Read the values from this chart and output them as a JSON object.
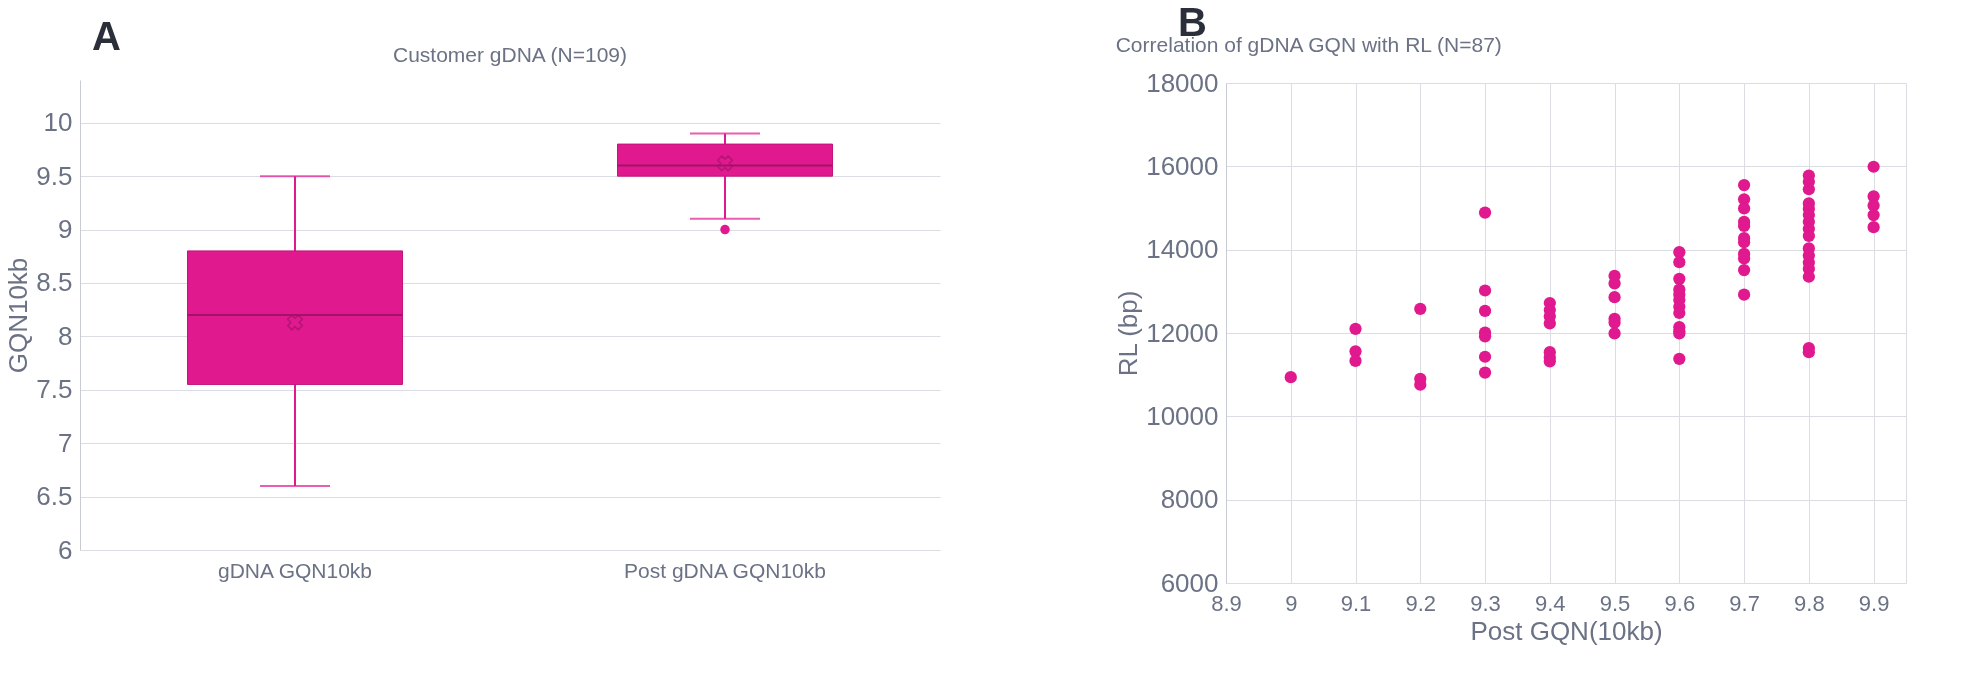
{
  "chart_data": [
    {
      "type": "box",
      "title": "Customer gDNA (N=109)",
      "ylabel": "GQN10kb",
      "annotations": [
        "A"
      ],
      "categories": [
        "gDNA GQN10kb",
        "Post gDNA GQN10kb"
      ],
      "boxes": [
        {
          "low": 6.6,
          "q1": 7.55,
          "median": 8.2,
          "q3": 8.8,
          "high": 9.5,
          "mean": 8.13
        },
        {
          "low": 9.1,
          "q1": 9.5,
          "median": 9.6,
          "q3": 9.8,
          "high": 9.9,
          "mean": 9.62,
          "outliers": [
            9.0
          ]
        }
      ],
      "color": "#e0198f",
      "ylim": [
        6,
        10.4
      ],
      "yticks": [
        6,
        6.5,
        7,
        7.5,
        8,
        8.5,
        9,
        9.5,
        10
      ],
      "grid": "y"
    },
    {
      "type": "scatter",
      "title": "Correlation of gDNA GQN with RL (N=87)",
      "xlabel": "Post GQN(10kb)",
      "ylabel": "RL (bp)",
      "annotations": [
        "B"
      ],
      "x": [
        9.0,
        9.1,
        9.1,
        9.1,
        9.2,
        9.2,
        9.2,
        9.3,
        9.3,
        9.3,
        9.3,
        9.3,
        9.3,
        9.3,
        9.4,
        9.4,
        9.4,
        9.4,
        9.4,
        9.4,
        9.4,
        9.5,
        9.5,
        9.5,
        9.5,
        9.5,
        9.5,
        9.6,
        9.6,
        9.6,
        9.6,
        9.6,
        9.6,
        9.6,
        9.6,
        9.6,
        9.6,
        9.6,
        9.6,
        9.7,
        9.7,
        9.7,
        9.7,
        9.7,
        9.7,
        9.7,
        9.7,
        9.7,
        9.7,
        9.7,
        9.8,
        9.8,
        9.8,
        9.8,
        9.8,
        9.8,
        9.8,
        9.8,
        9.8,
        9.8,
        9.8,
        9.8,
        9.8,
        9.8,
        9.8,
        9.8,
        9.9,
        9.9,
        9.9,
        9.9,
        9.9
      ],
      "series": [
        {
          "color": "#e0198f",
          "values": [
            10940,
            12100,
            11560,
            11330,
            12580,
            10900,
            10760,
            14890,
            13020,
            12530,
            12010,
            11920,
            11430,
            11050,
            12720,
            12550,
            12400,
            12230,
            11540,
            11410,
            11320,
            13370,
            13190,
            12860,
            12340,
            12250,
            11990,
            13940,
            13700,
            13300,
            13040,
            12920,
            12790,
            12630,
            12480,
            12140,
            12040,
            11990,
            11380,
            15550,
            15210,
            14990,
            14670,
            14570,
            14280,
            14180,
            13900,
            13790,
            13510,
            12920,
            15780,
            15630,
            15450,
            15110,
            14980,
            14830,
            14670,
            14500,
            14330,
            14030,
            13860,
            13690,
            13540,
            13350,
            11640,
            11540,
            15990,
            15280,
            15060,
            14830,
            14540
          ]
        }
      ],
      "xlim": [
        8.9,
        9.95
      ],
      "xticks": [
        8.9,
        9,
        9.1,
        9.2,
        9.3,
        9.4,
        9.5,
        9.6,
        9.7,
        9.8,
        9.9
      ],
      "ylim": [
        6000,
        18000
      ],
      "yticks": [
        6000,
        8000,
        10000,
        12000,
        14000,
        16000,
        18000
      ],
      "grid": true,
      "marker": "circle"
    }
  ]
}
